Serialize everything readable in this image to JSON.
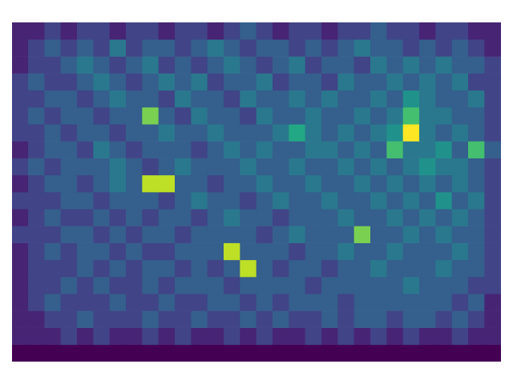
{
  "chart_data": {
    "type": "heatmap",
    "color": "viridis",
    "tick_labels": false,
    "cells": [
      [
        1,
        1,
        2,
        1,
        2,
        2,
        1,
        2,
        2,
        1,
        2,
        2,
        1,
        2,
        3,
        2,
        1,
        2,
        2,
        1,
        2,
        2,
        3,
        2,
        2,
        1,
        2,
        2,
        1,
        1
      ],
      [
        1,
        2,
        3,
        2,
        3,
        2,
        4,
        2,
        3,
        3,
        2,
        3,
        4,
        3,
        2,
        3,
        3,
        2,
        3,
        2,
        3,
        4,
        3,
        3,
        2,
        3,
        2,
        3,
        2,
        1
      ],
      [
        1,
        2,
        2,
        3,
        4,
        3,
        2,
        3,
        4,
        2,
        3,
        2,
        3,
        4,
        3,
        2,
        3,
        4,
        2,
        3,
        3,
        2,
        4,
        3,
        4,
        3,
        4,
        3,
        3,
        2
      ],
      [
        2,
        3,
        2,
        2,
        3,
        4,
        3,
        2,
        3,
        4,
        3,
        4,
        2,
        3,
        3,
        4,
        2,
        3,
        3,
        2,
        4,
        3,
        3,
        4,
        3,
        4,
        3,
        4,
        2,
        2
      ],
      [
        2,
        2,
        3,
        3,
        2,
        3,
        4,
        3,
        3,
        2,
        4,
        3,
        3,
        2,
        4,
        3,
        3,
        4,
        3,
        4,
        3,
        3,
        4,
        3,
        5,
        4,
        3,
        3,
        4,
        2
      ],
      [
        2,
        3,
        2,
        3,
        3,
        2,
        3,
        3,
        8,
        3,
        2,
        4,
        3,
        3,
        2,
        4,
        3,
        3,
        4,
        3,
        3,
        4,
        3,
        4,
        7,
        4,
        4,
        3,
        3,
        2
      ],
      [
        2,
        2,
        3,
        2,
        3,
        3,
        2,
        3,
        3,
        4,
        3,
        3,
        4,
        3,
        3,
        3,
        4,
        6,
        4,
        3,
        4,
        3,
        4,
        5,
        10,
        4,
        3,
        4,
        3,
        2
      ],
      [
        1,
        2,
        3,
        3,
        2,
        4,
        3,
        2,
        3,
        3,
        3,
        2,
        3,
        4,
        3,
        4,
        3,
        3,
        4,
        4,
        3,
        4,
        3,
        7,
        4,
        4,
        5,
        3,
        7,
        3
      ],
      [
        2,
        3,
        2,
        3,
        3,
        3,
        4,
        3,
        2,
        3,
        4,
        3,
        3,
        3,
        4,
        3,
        3,
        4,
        3,
        3,
        4,
        3,
        4,
        3,
        4,
        5,
        4,
        4,
        3,
        2
      ],
      [
        1,
        2,
        3,
        3,
        2,
        3,
        4,
        3,
        9,
        9,
        3,
        3,
        2,
        3,
        3,
        4,
        3,
        3,
        4,
        3,
        3,
        4,
        3,
        4,
        3,
        4,
        3,
        4,
        3,
        2
      ],
      [
        2,
        2,
        2,
        3,
        3,
        2,
        3,
        3,
        3,
        2,
        3,
        4,
        3,
        3,
        2,
        3,
        4,
        3,
        3,
        4,
        3,
        3,
        4,
        3,
        4,
        3,
        5,
        3,
        4,
        2
      ],
      [
        1,
        2,
        3,
        2,
        2,
        3,
        2,
        3,
        2,
        3,
        3,
        2,
        3,
        4,
        3,
        3,
        2,
        3,
        3,
        3,
        4,
        3,
        3,
        4,
        3,
        4,
        3,
        4,
        3,
        2
      ],
      [
        2,
        2,
        2,
        3,
        3,
        2,
        3,
        2,
        3,
        3,
        2,
        3,
        3,
        3,
        3,
        2,
        3,
        4,
        3,
        3,
        3,
        8,
        3,
        3,
        4,
        3,
        4,
        3,
        3,
        2
      ],
      [
        1,
        2,
        3,
        2,
        3,
        3,
        2,
        3,
        2,
        2,
        3,
        3,
        3,
        9,
        3,
        3,
        3,
        2,
        3,
        3,
        4,
        3,
        3,
        4,
        3,
        3,
        3,
        4,
        3,
        2
      ],
      [
        1,
        2,
        2,
        2,
        3,
        2,
        3,
        2,
        3,
        3,
        2,
        3,
        2,
        3,
        9,
        3,
        2,
        3,
        3,
        2,
        3,
        3,
        4,
        3,
        3,
        3,
        4,
        3,
        3,
        2
      ],
      [
        1,
        2,
        2,
        3,
        2,
        3,
        2,
        2,
        3,
        2,
        3,
        3,
        3,
        2,
        3,
        3,
        3,
        3,
        2,
        3,
        3,
        3,
        3,
        3,
        4,
        3,
        3,
        3,
        2,
        2
      ],
      [
        1,
        2,
        3,
        2,
        2,
        2,
        3,
        2,
        2,
        3,
        2,
        2,
        3,
        3,
        2,
        3,
        2,
        3,
        3,
        3,
        2,
        3,
        3,
        3,
        3,
        3,
        3,
        2,
        3,
        1
      ],
      [
        1,
        1,
        2,
        2,
        3,
        2,
        2,
        2,
        3,
        2,
        2,
        3,
        2,
        2,
        3,
        2,
        3,
        2,
        2,
        3,
        2,
        3,
        3,
        2,
        3,
        3,
        2,
        3,
        2,
        1
      ],
      [
        1,
        1,
        1,
        2,
        1,
        2,
        1,
        1,
        2,
        1,
        2,
        1,
        1,
        2,
        1,
        2,
        1,
        1,
        2,
        1,
        2,
        1,
        2,
        1,
        2,
        1,
        1,
        2,
        1,
        1
      ],
      [
        0,
        0,
        0,
        0,
        0,
        0,
        0,
        0,
        0,
        0,
        0,
        0,
        0,
        0,
        0,
        0,
        0,
        0,
        0,
        0,
        0,
        0,
        0,
        0,
        0,
        0,
        0,
        0,
        0,
        0
      ]
    ]
  }
}
